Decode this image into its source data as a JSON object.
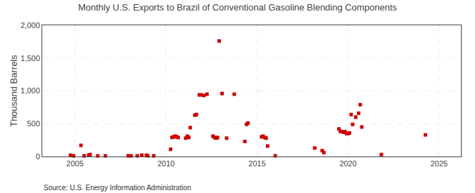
{
  "chart_data": {
    "type": "scatter",
    "title": "Monthly U.S. Exports to Brazil of Conventional Gasoline Blending Components",
    "ylabel": "Thousand Barrels",
    "annotations": [
      "Source: U.S. Energy Information Administration"
    ],
    "color": "#CC0000",
    "marker": "square",
    "grid": true,
    "xlim": [
      2003.2,
      2026.2
    ],
    "xticks": [
      2005,
      2010,
      2015,
      2020,
      2025
    ],
    "ylim": [
      0,
      2000
    ],
    "yticks": [
      0,
      500,
      {
        "value": 1000,
        "label": "1,000"
      },
      {
        "value": 1500,
        "label": "1,500"
      },
      {
        "value": 2000,
        "label": "2,000"
      }
    ],
    "x": [
      2004.75,
      2004.92,
      2005.33,
      2005.5,
      2005.75,
      2005.83,
      2006.25,
      2006.67,
      2007.92,
      2008.08,
      2008.42,
      2008.67,
      2008.92,
      2009.0,
      2009.33,
      2010.25,
      2010.33,
      2010.42,
      2010.5,
      2010.58,
      2010.67,
      2011.08,
      2011.17,
      2011.25,
      2011.33,
      2011.58,
      2011.67,
      2011.83,
      2011.92,
      2012.08,
      2012.25,
      2012.58,
      2012.67,
      2012.75,
      2012.83,
      2012.92,
      2013.08,
      2013.33,
      2013.75,
      2014.33,
      2014.42,
      2014.5,
      2015.25,
      2015.33,
      2015.42,
      2015.5,
      2015.58,
      2016.0,
      2018.17,
      2018.58,
      2018.67,
      2019.5,
      2019.58,
      2019.67,
      2019.75,
      2019.83,
      2019.92,
      2020.0,
      2020.08,
      2020.17,
      2020.25,
      2020.42,
      2020.58,
      2020.67,
      2020.75,
      2021.83,
      2024.25
    ],
    "values": [
      20,
      10,
      170,
      10,
      20,
      30,
      10,
      10,
      10,
      10,
      10,
      20,
      20,
      10,
      10,
      110,
      290,
      300,
      310,
      300,
      290,
      280,
      310,
      290,
      440,
      630,
      640,
      940,
      940,
      930,
      950,
      310,
      290,
      280,
      290,
      1760,
      960,
      280,
      950,
      230,
      490,
      510,
      300,
      310,
      290,
      280,
      160,
      10,
      130,
      90,
      60,
      420,
      380,
      380,
      370,
      380,
      350,
      350,
      360,
      640,
      490,
      600,
      660,
      790,
      450,
      30,
      330
    ]
  }
}
